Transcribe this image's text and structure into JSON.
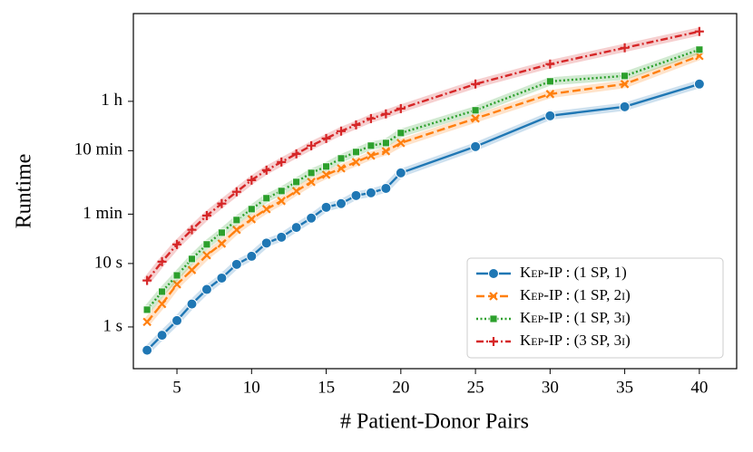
{
  "chart_data": {
    "type": "line",
    "xlabel": "# Patient-Donor Pairs",
    "ylabel": "Runtime",
    "x": [
      3,
      4,
      5,
      6,
      7,
      8,
      9,
      10,
      11,
      12,
      13,
      14,
      15,
      16,
      17,
      18,
      19,
      20,
      25,
      30,
      35,
      40
    ],
    "xlim": [
      2.08,
      42.5
    ],
    "xticks": [
      5,
      10,
      15,
      20,
      25,
      30,
      35,
      40
    ],
    "ylim": [
      0.22,
      87000
    ],
    "log_y": true,
    "yticks": [
      {
        "value": 1,
        "label": "1 s"
      },
      {
        "value": 10,
        "label": "10 s"
      },
      {
        "value": 60,
        "label": "1 min"
      },
      {
        "value": 600,
        "label": "10 min"
      },
      {
        "value": 3600,
        "label": "1 h"
      }
    ],
    "legend": "lower right",
    "series": [
      {
        "name": "Kep-IP : (1 SP, 1)",
        "color": "#1f77b4",
        "marker": "circle",
        "dash": "solid",
        "values": [
          0.43,
          0.74,
          1.26,
          2.3,
          3.9,
          5.9,
          9.7,
          13,
          21,
          26,
          37,
          52,
          77,
          88,
          118,
          130,
          153,
          268,
          697,
          2130,
          2960,
          6740
        ]
      },
      {
        "name": "Kep-IP : (1 SP, 2ι)",
        "color": "#ff7f0e",
        "marker": "x",
        "dash": "dashed",
        "values": [
          1.2,
          2.3,
          4.7,
          7.9,
          13.5,
          20.6,
          34,
          50,
          72,
          97,
          139,
          193,
          251,
          316,
          398,
          501,
          590,
          794,
          1930,
          4690,
          6740,
          18700
        ]
      },
      {
        "name": "Kep-IP : (1 SP, 3ι)",
        "color": "#2ca02c",
        "marker": "square",
        "dash": "dotted",
        "values": [
          1.87,
          3.6,
          6.5,
          11.8,
          20,
          30.6,
          48.5,
          72,
          107,
          139,
          193,
          268,
          338,
          454,
          572,
          720,
          794,
          1140,
          2600,
          7430,
          9060,
          23500
        ]
      },
      {
        "name": "Kep-IP : (3 SP, 3ι)",
        "color": "#d62728",
        "marker": "plus",
        "dash": "dashdot",
        "values": [
          5.4,
          10.7,
          20,
          34,
          57,
          88,
          135,
          206,
          296,
          398,
          535,
          720,
          936,
          1220,
          1530,
          1930,
          2280,
          2770,
          6740,
          13900,
          25100,
          45400
        ]
      }
    ]
  }
}
